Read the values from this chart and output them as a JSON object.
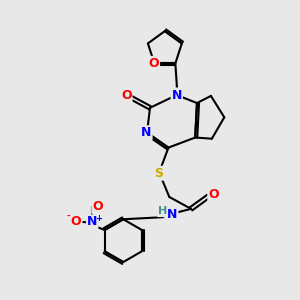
{
  "bg_color": "#e8e8e8",
  "bond_color": "#000000",
  "bond_width": 1.5,
  "atom_colors": {
    "N": "#0000ff",
    "O": "#ff0000",
    "S": "#ccaa00",
    "H": "#4a9090",
    "C": "#000000",
    "plus": "#0000ff",
    "minus": "#ff0000"
  },
  "font_size": 9,
  "font_size_small": 6,
  "figsize": [
    3.0,
    3.0
  ],
  "dpi": 100
}
